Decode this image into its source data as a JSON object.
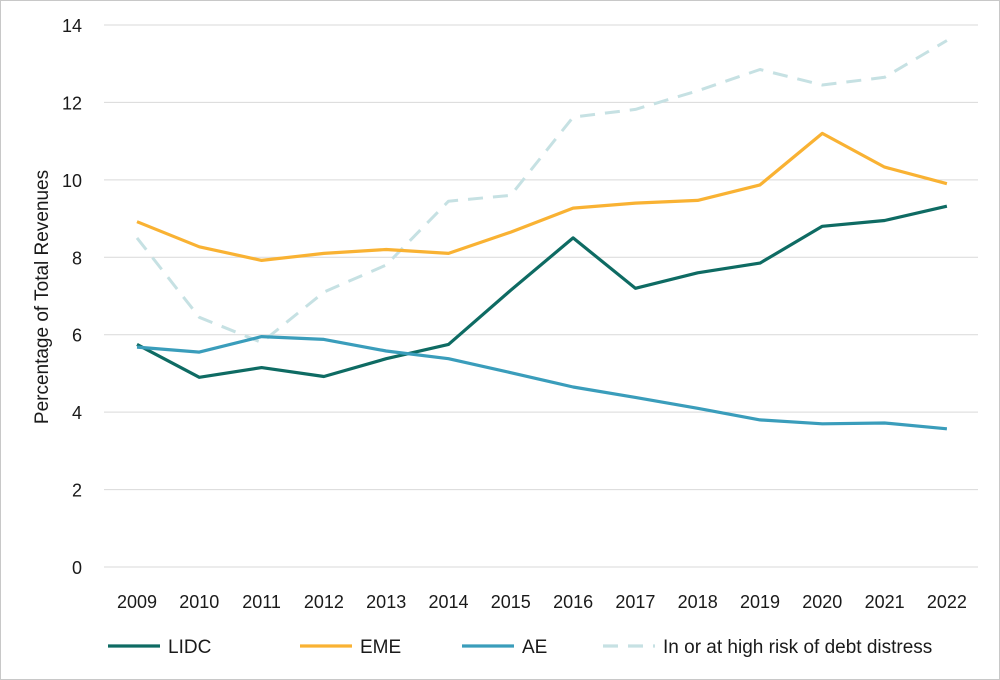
{
  "chart_data": {
    "type": "line",
    "title": "",
    "xlabel": "",
    "ylabel": "Percentage of Total Revenues",
    "x": [
      "2009",
      "2010",
      "2011",
      "2012",
      "2013",
      "2014",
      "2015",
      "2016",
      "2017",
      "2018",
      "2019",
      "2020",
      "2021",
      "2022"
    ],
    "yticks": [
      "0",
      "2",
      "4",
      "6",
      "8",
      "10",
      "12",
      "14"
    ],
    "ylim": [
      0,
      14
    ],
    "grid": true,
    "legend_position": "bottom",
    "series": [
      {
        "name": "LIDC",
        "color": "#0e6b63",
        "dash": false,
        "values": [
          5.75,
          4.9,
          5.15,
          4.92,
          5.38,
          5.75,
          7.15,
          8.5,
          7.2,
          7.6,
          7.85,
          8.8,
          8.95,
          9.32
        ]
      },
      {
        "name": "EME",
        "color": "#f9b233",
        "dash": false,
        "values": [
          8.92,
          8.27,
          7.92,
          8.1,
          8.2,
          8.1,
          8.65,
          9.27,
          9.4,
          9.47,
          9.87,
          11.2,
          10.33,
          9.9
        ]
      },
      {
        "name": "AE",
        "color": "#3a9dbb",
        "dash": false,
        "values": [
          5.68,
          5.55,
          5.95,
          5.88,
          5.58,
          5.38,
          5.02,
          4.65,
          4.38,
          4.1,
          3.8,
          3.7,
          3.72,
          3.57
        ]
      },
      {
        "name": "In or at high risk of debt distress",
        "color": "#c6e1e3",
        "dash": true,
        "values": [
          8.5,
          6.45,
          5.8,
          7.1,
          7.8,
          9.45,
          9.6,
          11.62,
          11.82,
          12.3,
          12.85,
          12.45,
          12.65,
          13.6
        ]
      }
    ]
  }
}
